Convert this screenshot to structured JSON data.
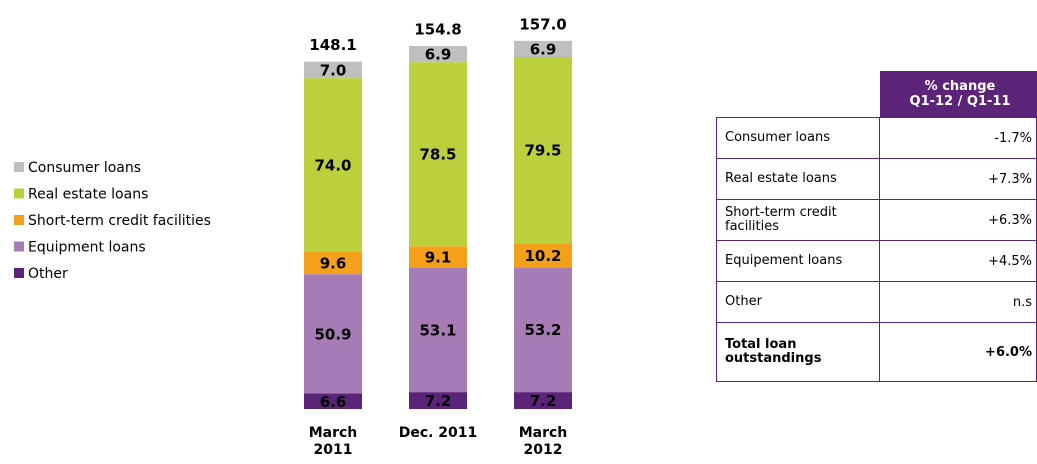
{
  "chart_data": {
    "type": "stacked_bar",
    "categories": [
      "March 2011",
      "Dec. 2011",
      "March 2012"
    ],
    "series": [
      {
        "name": "Other",
        "color": "#5c2478",
        "values": [
          6.6,
          7.2,
          7.2
        ]
      },
      {
        "name": "Equipment loans",
        "color": "#a77bb5",
        "values": [
          50.9,
          53.1,
          53.2
        ]
      },
      {
        "name": "Short-term credit facilities",
        "color": "#f5a01a",
        "values": [
          9.6,
          9.1,
          10.2
        ]
      },
      {
        "name": "Real estate loans",
        "color": "#bccf3c",
        "values": [
          74.0,
          78.5,
          79.5
        ],
        "value_labels": [
          "74.0",
          "78.5",
          "79.5"
        ]
      },
      {
        "name": "Consumer loans",
        "color": "#bfbfbf",
        "values": [
          7.0,
          6.9,
          6.9
        ],
        "value_labels": [
          "7.0",
          "6.9",
          "6.9"
        ]
      }
    ],
    "totals": {
      "values": [
        148.1,
        154.8,
        157.0
      ],
      "value_labels": [
        "148.1",
        "154.8",
        "157.0"
      ]
    }
  },
  "table": {
    "header": [
      "% change",
      "Q1-12 / Q1-11"
    ],
    "rows": [
      [
        "Consumer loans",
        "-1.7%"
      ],
      [
        "Real estate loans",
        "+7.3%"
      ],
      [
        "Short-term credit facilities",
        "+6.3%"
      ],
      [
        "Equipement loans",
        "+4.5%"
      ],
      [
        "Other",
        "n.s"
      ],
      [
        "Total loan outstandings",
        "+6.0%"
      ]
    ]
  }
}
